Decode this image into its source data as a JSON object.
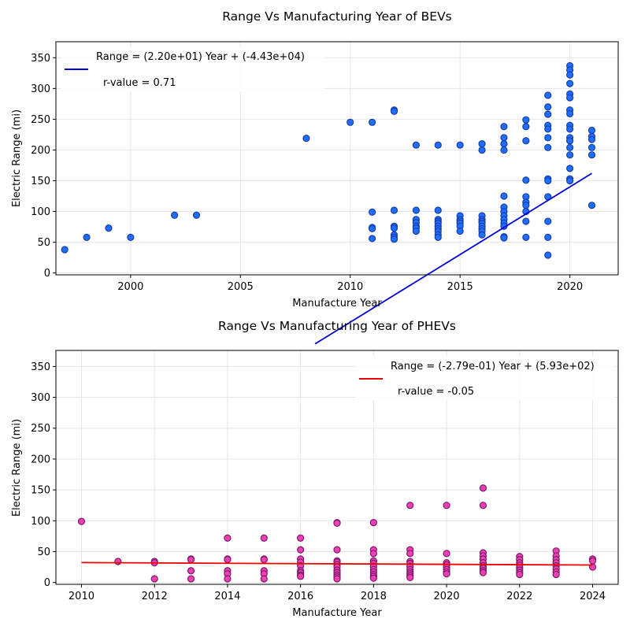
{
  "chart_data": [
    {
      "type": "scatter",
      "title": "Range Vs Manufacturing Year of BEVs",
      "xlabel": "Manufacture Year",
      "ylabel": "Electric Range (mi)",
      "xlim": [
        1996.6,
        2022.2
      ],
      "ylim": [
        -3,
        376
      ],
      "xticks": [
        2000,
        2005,
        2010,
        2015,
        2020
      ],
      "yticks": [
        0,
        50,
        100,
        150,
        200,
        250,
        300,
        350
      ],
      "grid": true,
      "legend_position": "upper-left",
      "point_fill": "#1f6fff",
      "point_edge": "#1a3da8",
      "fit_color": "#0000dd",
      "fit_label": "Range = (2.20e+01) Year + (-4.43e+04)",
      "r_label": "r-value =  0.71",
      "fit": {
        "slope": 22.0,
        "intercept": -44300,
        "x_start": 2008.4,
        "x_end": 2021
      },
      "points": [
        [
          1997,
          38
        ],
        [
          1998,
          58
        ],
        [
          1999,
          73
        ],
        [
          2000,
          58
        ],
        [
          2002,
          94
        ],
        [
          2003,
          94
        ],
        [
          2008,
          219
        ],
        [
          2010,
          245
        ],
        [
          2011,
          245
        ],
        [
          2011,
          99
        ],
        [
          2011,
          74
        ],
        [
          2011,
          72
        ],
        [
          2011,
          56
        ],
        [
          2012,
          265
        ],
        [
          2012,
          263
        ],
        [
          2012,
          102
        ],
        [
          2012,
          76
        ],
        [
          2012,
          73
        ],
        [
          2012,
          62
        ],
        [
          2012,
          58
        ],
        [
          2012,
          55
        ],
        [
          2013,
          208
        ],
        [
          2013,
          102
        ],
        [
          2013,
          87
        ],
        [
          2013,
          82
        ],
        [
          2013,
          76
        ],
        [
          2013,
          73
        ],
        [
          2013,
          68
        ],
        [
          2014,
          208
        ],
        [
          2014,
          102
        ],
        [
          2014,
          87
        ],
        [
          2014,
          84
        ],
        [
          2014,
          81
        ],
        [
          2014,
          76
        ],
        [
          2014,
          72
        ],
        [
          2014,
          68
        ],
        [
          2014,
          62
        ],
        [
          2014,
          58
        ],
        [
          2015,
          208
        ],
        [
          2015,
          93
        ],
        [
          2015,
          87
        ],
        [
          2015,
          84
        ],
        [
          2015,
          81
        ],
        [
          2015,
          76
        ],
        [
          2015,
          68
        ],
        [
          2016,
          210
        ],
        [
          2016,
          200
        ],
        [
          2016,
          93
        ],
        [
          2016,
          87
        ],
        [
          2016,
          84
        ],
        [
          2016,
          81
        ],
        [
          2016,
          76
        ],
        [
          2016,
          72
        ],
        [
          2016,
          68
        ],
        [
          2016,
          62
        ],
        [
          2017,
          238
        ],
        [
          2017,
          220
        ],
        [
          2017,
          210
        ],
        [
          2017,
          200
        ],
        [
          2017,
          125
        ],
        [
          2017,
          107
        ],
        [
          2017,
          100
        ],
        [
          2017,
          93
        ],
        [
          2017,
          87
        ],
        [
          2017,
          81
        ],
        [
          2017,
          76
        ],
        [
          2017,
          59
        ],
        [
          2017,
          57
        ],
        [
          2018,
          249
        ],
        [
          2018,
          238
        ],
        [
          2018,
          215
        ],
        [
          2018,
          151
        ],
        [
          2018,
          124
        ],
        [
          2018,
          115
        ],
        [
          2018,
          110
        ],
        [
          2018,
          100
        ],
        [
          2018,
          84
        ],
        [
          2018,
          58
        ],
        [
          2019,
          289
        ],
        [
          2019,
          270
        ],
        [
          2019,
          258
        ],
        [
          2019,
          240
        ],
        [
          2019,
          234
        ],
        [
          2019,
          220
        ],
        [
          2019,
          204
        ],
        [
          2019,
          153
        ],
        [
          2019,
          150
        ],
        [
          2019,
          124
        ],
        [
          2019,
          84
        ],
        [
          2019,
          58
        ],
        [
          2019,
          29
        ],
        [
          2020,
          337
        ],
        [
          2020,
          330
        ],
        [
          2020,
          322
        ],
        [
          2020,
          308
        ],
        [
          2020,
          291
        ],
        [
          2020,
          285
        ],
        [
          2020,
          265
        ],
        [
          2020,
          259
        ],
        [
          2020,
          240
        ],
        [
          2020,
          234
        ],
        [
          2020,
          220
        ],
        [
          2020,
          215
        ],
        [
          2020,
          204
        ],
        [
          2020,
          192
        ],
        [
          2020,
          170
        ],
        [
          2020,
          153
        ],
        [
          2020,
          150
        ],
        [
          2021,
          232
        ],
        [
          2021,
          222
        ],
        [
          2021,
          217
        ],
        [
          2021,
          204
        ],
        [
          2021,
          192
        ],
        [
          2021,
          110
        ]
      ]
    },
    {
      "type": "scatter",
      "title": "Range Vs Manufacturing Year of PHEVs",
      "xlabel": "Manufacture Year",
      "ylabel": "Electric Range (mi)",
      "xlim": [
        2009.3,
        2024.7
      ],
      "ylim": [
        -3,
        376
      ],
      "xticks": [
        2010,
        2012,
        2014,
        2016,
        2018,
        2020,
        2022,
        2024
      ],
      "yticks": [
        0,
        50,
        100,
        150,
        200,
        250,
        300,
        350
      ],
      "grid": true,
      "legend_position": "upper-right",
      "point_fill": "#ee3fb3",
      "point_edge": "#7a1a6a",
      "fit_color": "#ee0000",
      "fit_label": "Range = (-2.79e-01) Year + (5.93e+02)",
      "r_label": "r-value = -0.05",
      "fit": {
        "slope": -0.279,
        "intercept": 593,
        "x_start": 2010,
        "x_end": 2024
      },
      "points": [
        [
          2010,
          99
        ],
        [
          2011,
          34
        ],
        [
          2012,
          34
        ],
        [
          2012,
          32
        ],
        [
          2012,
          6
        ],
        [
          2013,
          38
        ],
        [
          2013,
          37
        ],
        [
          2013,
          19
        ],
        [
          2013,
          6
        ],
        [
          2014,
          72
        ],
        [
          2014,
          38
        ],
        [
          2014,
          37
        ],
        [
          2014,
          19
        ],
        [
          2014,
          14
        ],
        [
          2014,
          6
        ],
        [
          2015,
          72
        ],
        [
          2015,
          38
        ],
        [
          2015,
          37
        ],
        [
          2015,
          19
        ],
        [
          2015,
          14
        ],
        [
          2015,
          6
        ],
        [
          2016,
          72
        ],
        [
          2016,
          53
        ],
        [
          2016,
          38
        ],
        [
          2016,
          33
        ],
        [
          2016,
          27
        ],
        [
          2016,
          19
        ],
        [
          2016,
          16
        ],
        [
          2016,
          12
        ],
        [
          2016,
          10
        ],
        [
          2017,
          97
        ],
        [
          2017,
          96
        ],
        [
          2017,
          53
        ],
        [
          2017,
          35
        ],
        [
          2017,
          33
        ],
        [
          2017,
          29
        ],
        [
          2017,
          25
        ],
        [
          2017,
          20
        ],
        [
          2017,
          16
        ],
        [
          2017,
          12
        ],
        [
          2017,
          9
        ],
        [
          2017,
          6
        ],
        [
          2018,
          97
        ],
        [
          2018,
          53
        ],
        [
          2018,
          47
        ],
        [
          2018,
          35
        ],
        [
          2018,
          31
        ],
        [
          2018,
          26
        ],
        [
          2018,
          21
        ],
        [
          2018,
          17
        ],
        [
          2018,
          13
        ],
        [
          2018,
          10
        ],
        [
          2018,
          7
        ],
        [
          2019,
          125
        ],
        [
          2019,
          53
        ],
        [
          2019,
          47
        ],
        [
          2019,
          34
        ],
        [
          2019,
          31
        ],
        [
          2019,
          26
        ],
        [
          2019,
          21
        ],
        [
          2019,
          17
        ],
        [
          2019,
          14
        ],
        [
          2019,
          11
        ],
        [
          2019,
          8
        ],
        [
          2020,
          125
        ],
        [
          2020,
          47
        ],
        [
          2020,
          32
        ],
        [
          2020,
          29
        ],
        [
          2020,
          25
        ],
        [
          2020,
          21
        ],
        [
          2020,
          17
        ],
        [
          2020,
          14
        ],
        [
          2021,
          153
        ],
        [
          2021,
          125
        ],
        [
          2021,
          48
        ],
        [
          2021,
          43
        ],
        [
          2021,
          38
        ],
        [
          2021,
          32
        ],
        [
          2021,
          27
        ],
        [
          2021,
          23
        ],
        [
          2021,
          19
        ],
        [
          2021,
          16
        ],
        [
          2022,
          42
        ],
        [
          2022,
          37
        ],
        [
          2022,
          32
        ],
        [
          2022,
          28
        ],
        [
          2022,
          24
        ],
        [
          2022,
          20
        ],
        [
          2022,
          16
        ],
        [
          2022,
          13
        ],
        [
          2023,
          51
        ],
        [
          2023,
          43
        ],
        [
          2023,
          37
        ],
        [
          2023,
          32
        ],
        [
          2023,
          27
        ],
        [
          2023,
          22
        ],
        [
          2023,
          17
        ],
        [
          2023,
          13
        ],
        [
          2024,
          38
        ],
        [
          2024,
          35
        ],
        [
          2024,
          25
        ]
      ]
    }
  ]
}
